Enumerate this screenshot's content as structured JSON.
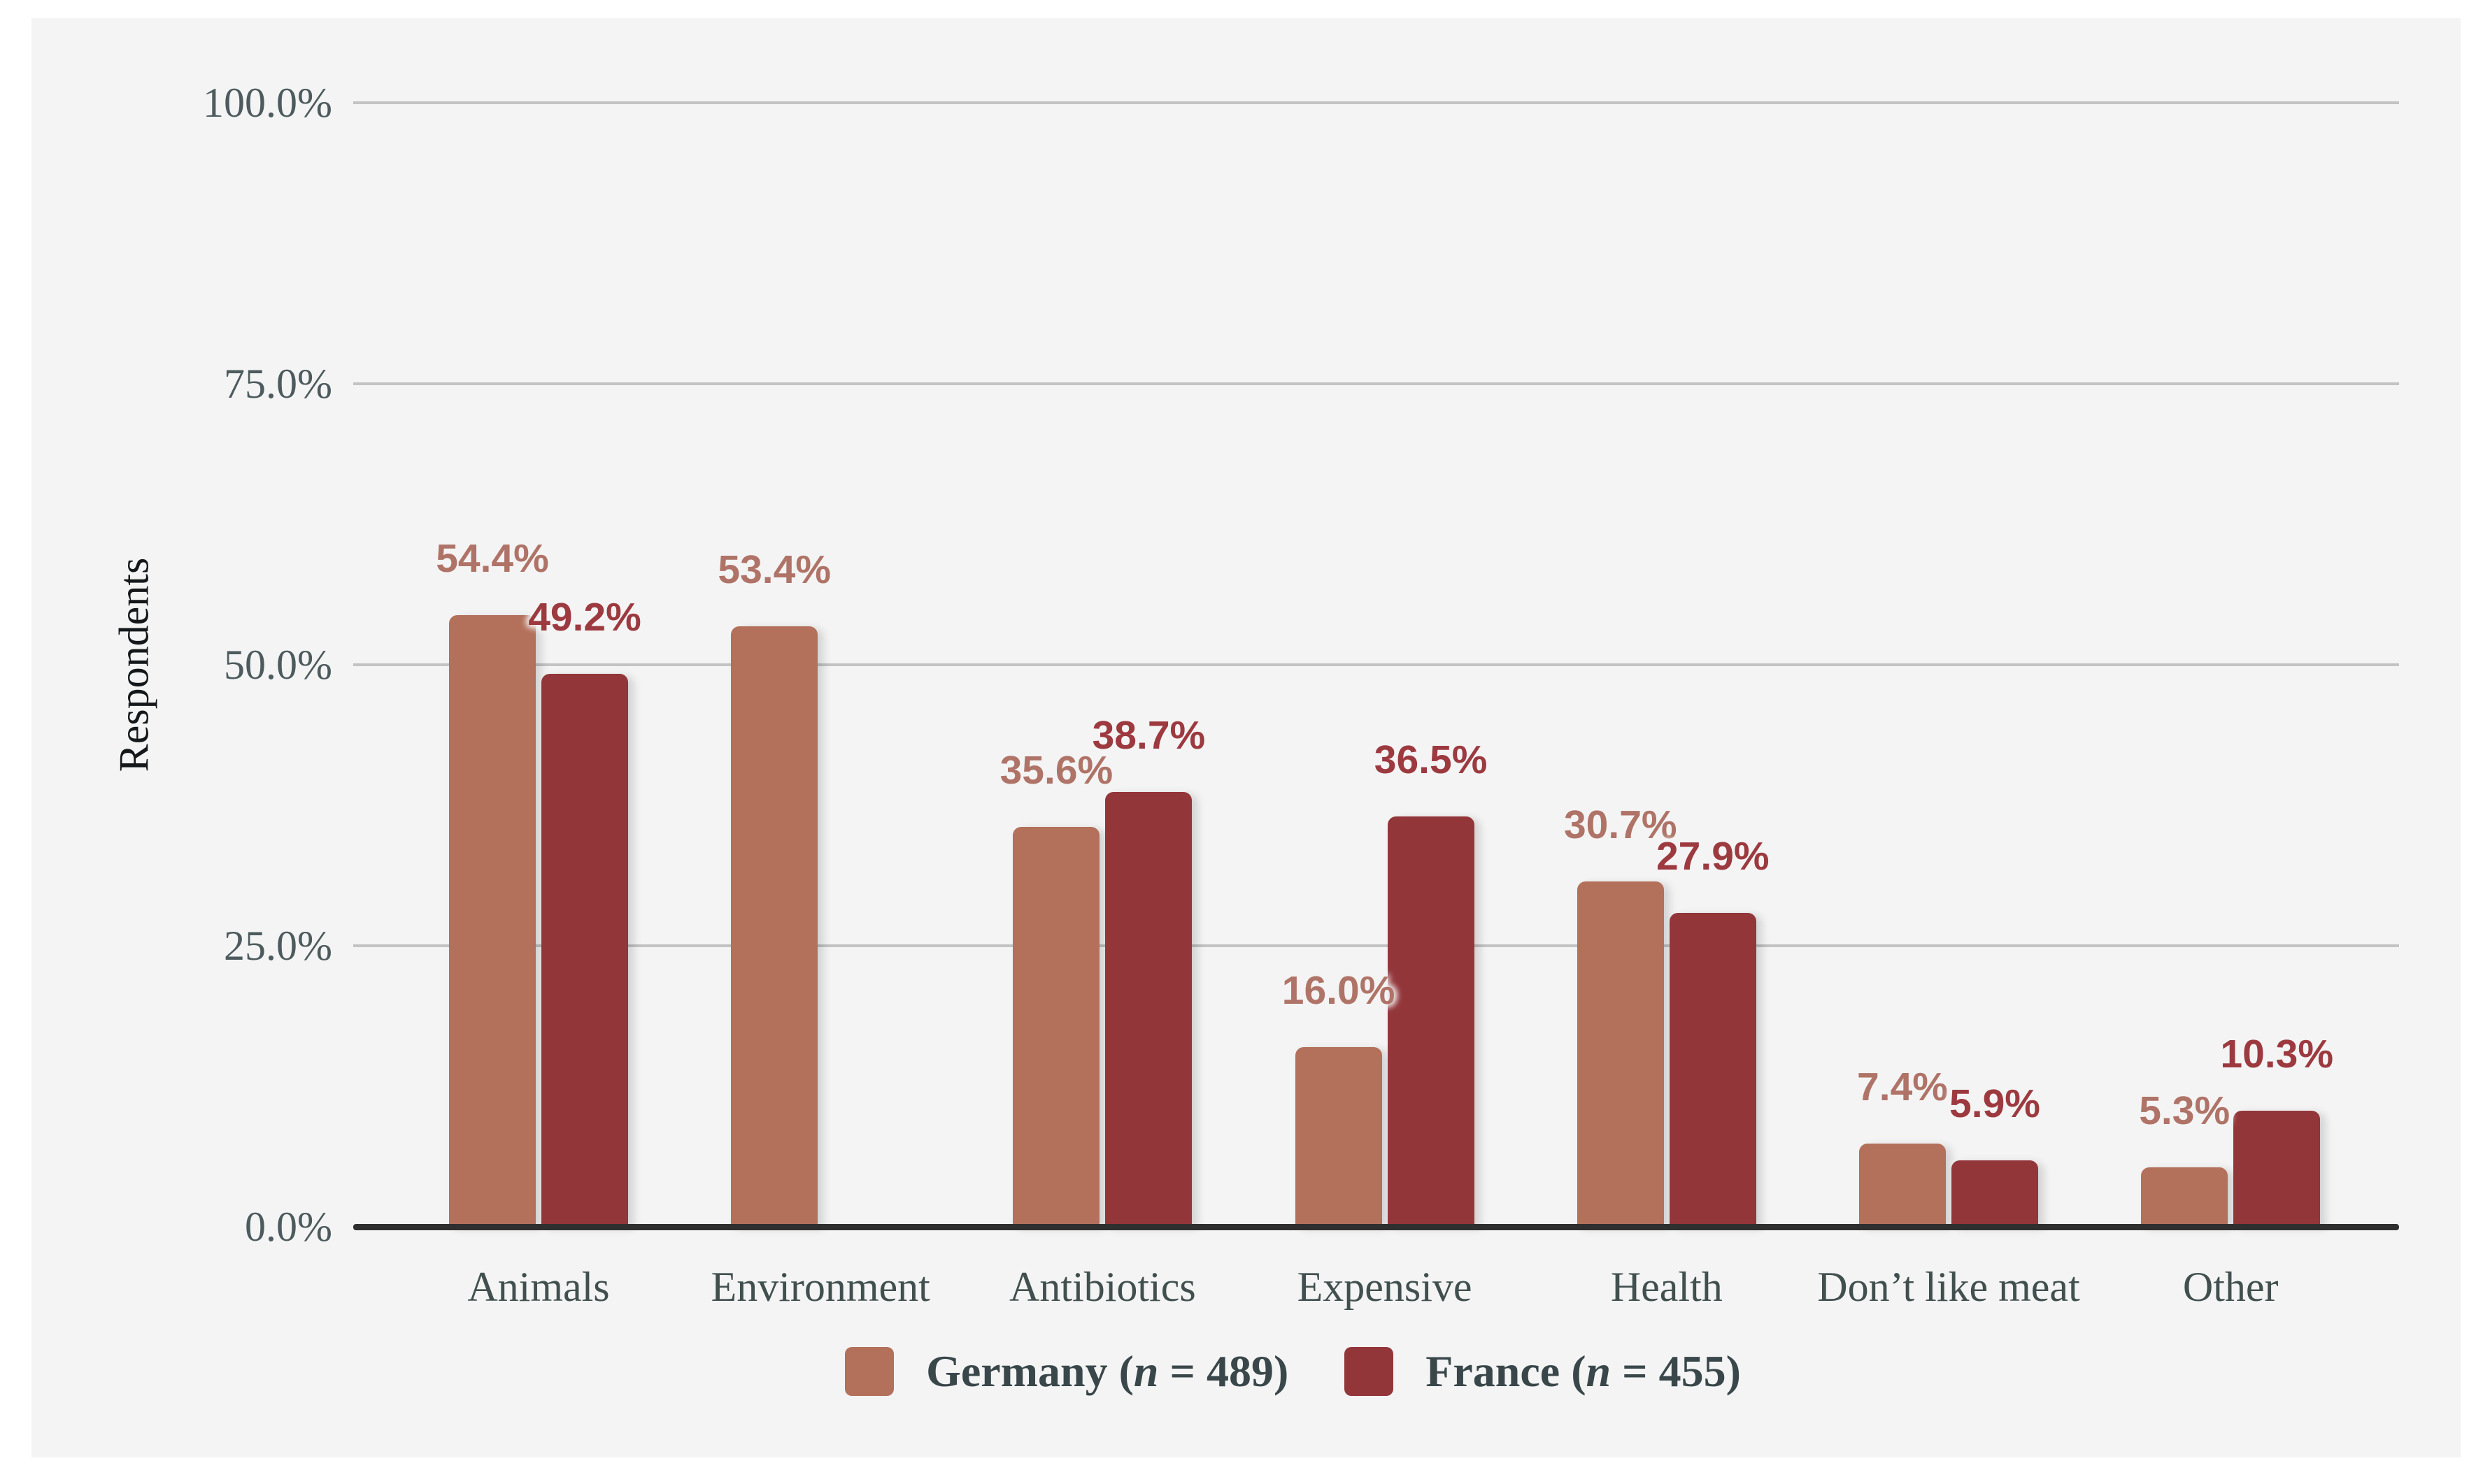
{
  "chart_data": {
    "type": "bar",
    "title": "",
    "xlabel": "",
    "ylabel": "Respondents",
    "ylim": [
      0,
      100
    ],
    "grid": true,
    "legend_position": "bottom",
    "categories": [
      "Animals",
      "Environment",
      "Antibiotics",
      "Expensive",
      "Health",
      "Don’t like meat",
      "Other"
    ],
    "yticks": [
      {
        "label": "100.0%",
        "value": 100
      },
      {
        "label": "75.0%",
        "value": 75
      },
      {
        "label": "50.0%",
        "value": 50
      },
      {
        "label": "25.0%",
        "value": 25
      },
      {
        "label": "0.0%",
        "value": 0
      }
    ],
    "series": [
      {
        "name": "Germany",
        "n": 489,
        "legend": {
          "prefix": "Germany (",
          "n": "n",
          "suffix": " = 489)"
        },
        "color": "#b3705a",
        "label_color": "#af7367",
        "values": [
          54.4,
          53.4,
          35.6,
          16.0,
          30.7,
          7.4,
          5.3
        ],
        "labels": [
          "54.4%",
          "53.4%",
          "35.6%",
          "16.0%",
          "30.7%",
          "7.4%",
          "5.3%"
        ]
      },
      {
        "name": "France",
        "n": 455,
        "legend": {
          "prefix": "France (",
          "n": "n",
          "suffix": " = 455)"
        },
        "color": "#93363a",
        "label_color": "#9c3a40",
        "values": [
          49.2,
          null,
          38.7,
          36.5,
          27.9,
          5.9,
          10.3
        ],
        "labels": [
          "49.2%",
          null,
          "38.7%",
          "36.5%",
          "27.9%",
          "5.9%",
          "10.3%"
        ]
      }
    ]
  },
  "colors": {
    "page_bg": "#ffffff",
    "panel_bg": "#f4f4f4",
    "gridline": "#c3c3c3",
    "baseline": "#2f2f2f",
    "tick_text": "#4d5b5e",
    "category_text": "#41504f",
    "legend_text": "#39474a",
    "ylabel_text": "#14181a"
  }
}
